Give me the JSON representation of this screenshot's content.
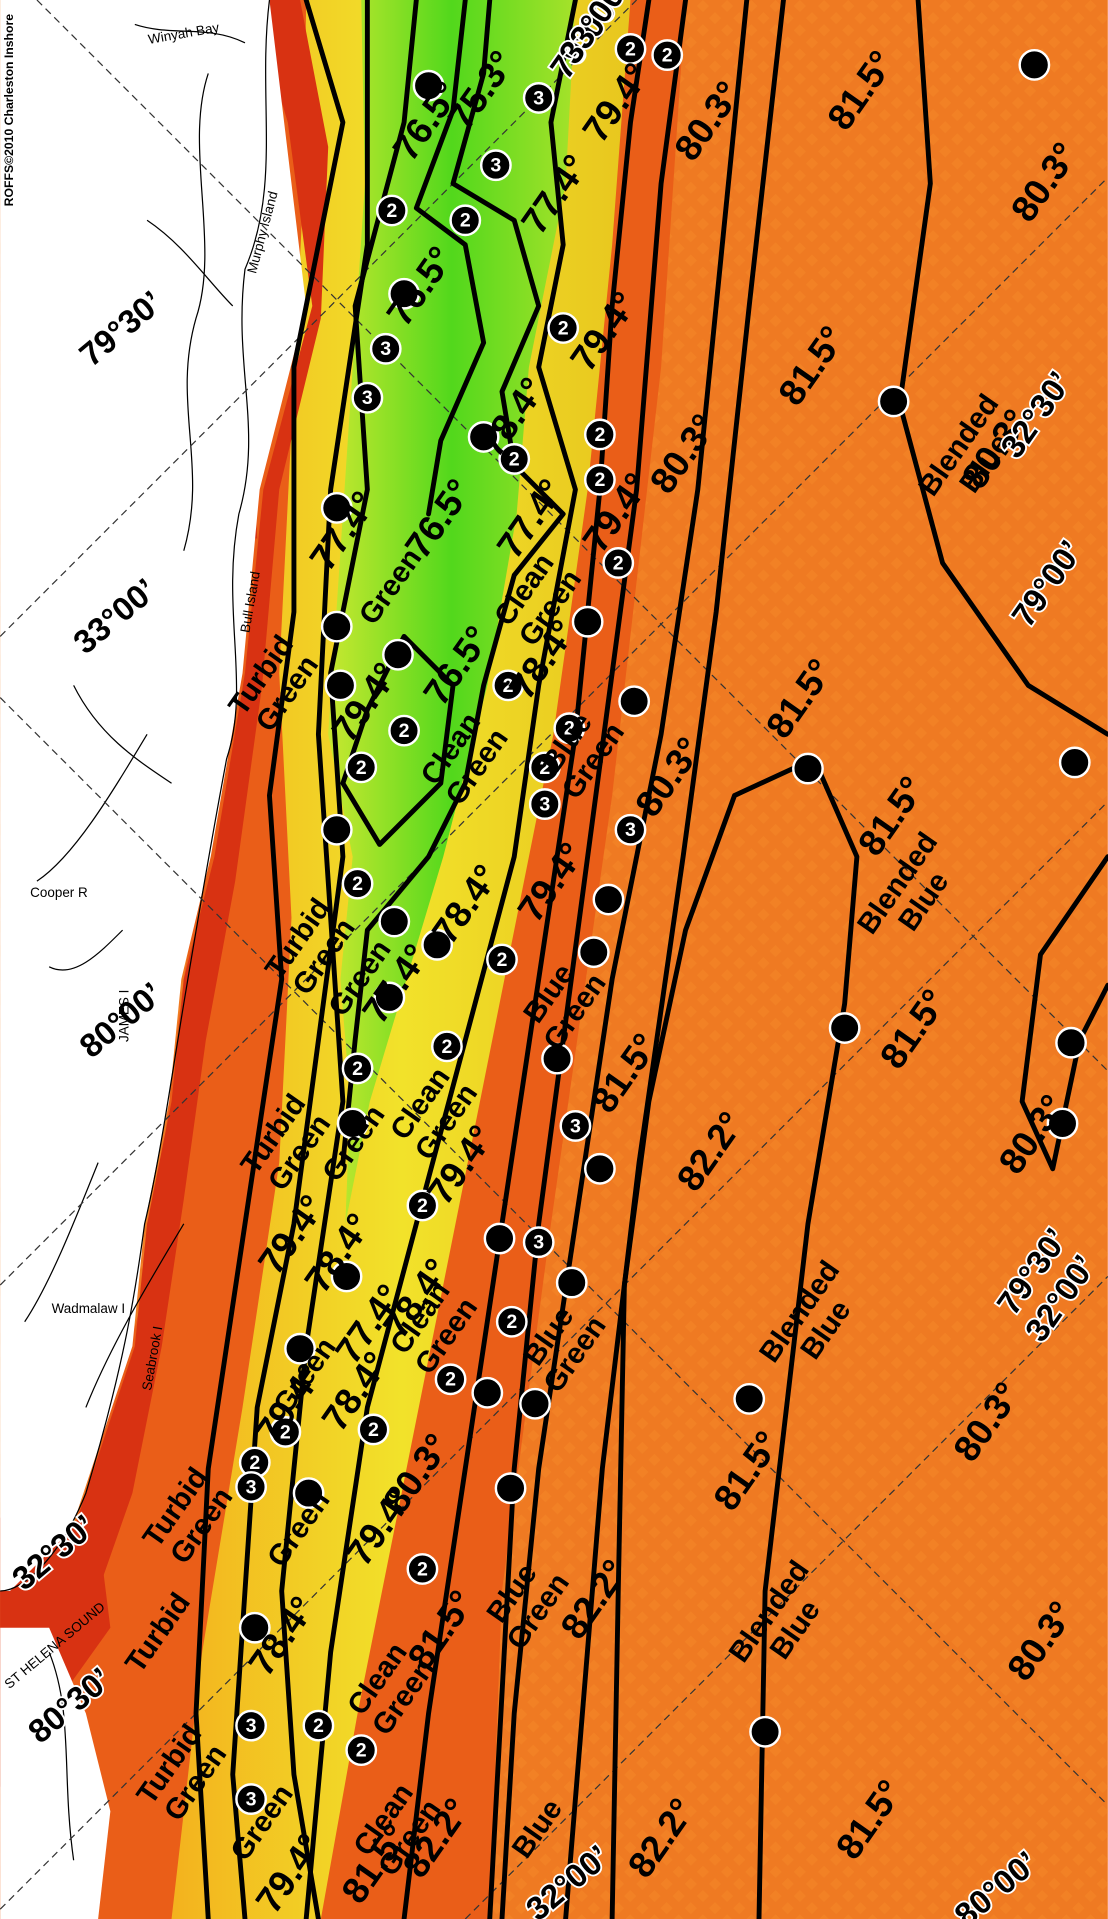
{
  "credit": "ROFFS©2010 Charleston Inshore",
  "places": [
    "Winyah Bay",
    "Murphy Island",
    "Bull Island",
    "Cooper R",
    "JAMES I",
    "Wadmalaw I",
    "Seabrook I",
    "ST HELENA SOUND"
  ],
  "coordinates": [
    "79°00’",
    "33°00’",
    "79°30’",
    "33°00’",
    "80°00’",
    "32°30’",
    "80°30’",
    "32°30’",
    "79°00’",
    "79°30’",
    "32°00’",
    "32°00’",
    "80°00’"
  ],
  "temperatures": [
    "76.5°",
    "75.3°",
    "79.4°",
    "80.3°",
    "81.5°",
    "80.3°",
    "77.4°",
    "76.5°",
    "79.4°",
    "81.5°",
    "80.3°",
    "78.4°",
    "77.4°",
    "76.5°",
    "77.4°",
    "79.4°",
    "80.3°",
    "81.5°",
    "79.4°",
    "76.5°",
    "78.4°",
    "80.3°",
    "81.5°",
    "79.4°",
    "78.4°",
    "77.4°",
    "81.5°",
    "81.5°",
    "82.2°",
    "80.3°",
    "79.4°",
    "79.4°",
    "78.4°",
    "77.4°",
    "78.4°",
    "79.4°",
    "78.4°",
    "79.4°",
    "80.3°",
    "80.3°",
    "81.5°",
    "81.5°",
    "82.2°",
    "78.4°",
    "80.3°",
    "81.5°",
    "82.2°",
    "82.2°",
    "81.5°",
    "79.4°"
  ],
  "water_labels": [
    [
      "Green"
    ],
    [
      "Clean",
      "Green"
    ],
    [
      "Turbid",
      "Green"
    ],
    [
      "Clean",
      "Green"
    ],
    [
      "Blue",
      "Green"
    ],
    [
      "Blended",
      "Blue"
    ],
    [
      "Blended",
      "Blue"
    ],
    [
      "Turbid",
      "Green"
    ],
    [
      "Green"
    ],
    [
      "Blue",
      "Green"
    ],
    [
      "Clean",
      "Green"
    ],
    [
      "Turbid",
      "Green"
    ],
    [
      "Green"
    ],
    [
      "Clean",
      "Green"
    ],
    [
      "Blue",
      "Green"
    ],
    [
      "Blended",
      "Blue"
    ],
    [
      "Green"
    ],
    [
      "Turbid",
      "Green"
    ],
    [
      "Green"
    ],
    [
      "Blue",
      "Green"
    ],
    [
      "Turbid"
    ],
    [
      "Blended",
      "Blue"
    ],
    [
      "Clean",
      "Green"
    ],
    [
      "Turbid",
      "Green"
    ],
    [
      "Green"
    ],
    [
      "Clean",
      "Green"
    ],
    [
      "Blue"
    ]
  ],
  "station_numbers": [
    "3",
    "2",
    "2",
    "2",
    "2",
    "3",
    "3",
    "3",
    "2",
    "2",
    "2",
    "2",
    "2",
    "2",
    "2",
    "2",
    "2",
    "2",
    "3",
    "3",
    "2",
    "2",
    "2",
    "2",
    "3",
    "2",
    "3",
    "2",
    "2",
    "2",
    "2",
    "3",
    "2",
    "2",
    "3",
    "2",
    "2",
    "3"
  ]
}
